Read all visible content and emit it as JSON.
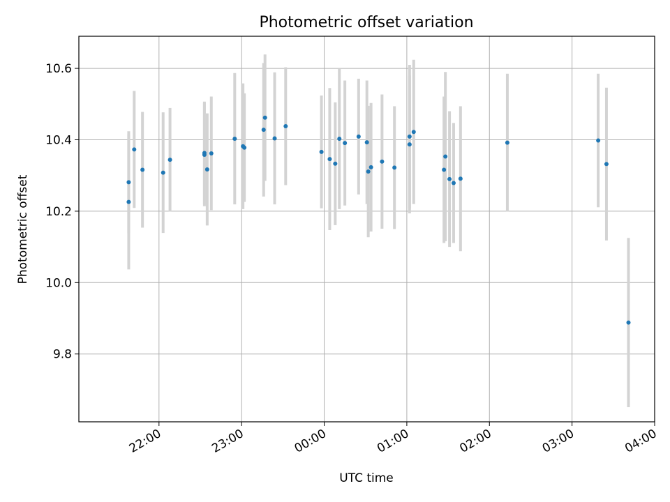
{
  "chart_data": {
    "type": "scatter",
    "title": "Photometric offset variation",
    "xlabel": "UTC time",
    "ylabel": "Photometric offset",
    "x_axis": "time (hours past 00:00 UTC)",
    "xlim": [
      -2.97,
      4.0
    ],
    "ylim": [
      9.61,
      10.69
    ],
    "grid": true,
    "xticks": [
      {
        "value": -2,
        "label": "22:00"
      },
      {
        "value": -1,
        "label": "23:00"
      },
      {
        "value": 0,
        "label": "00:00"
      },
      {
        "value": 1,
        "label": "01:00"
      },
      {
        "value": 2,
        "label": "02:00"
      },
      {
        "value": 3,
        "label": "03:00"
      },
      {
        "value": 4,
        "label": "04:00"
      }
    ],
    "yticks": [
      {
        "value": 9.8,
        "label": "9.8"
      },
      {
        "value": 10.0,
        "label": "10.0"
      },
      {
        "value": 10.2,
        "label": "10.2"
      },
      {
        "value": 10.4,
        "label": "10.4"
      },
      {
        "value": 10.6,
        "label": "10.6"
      }
    ],
    "colors": {
      "point": "#1f77b4",
      "errorbar": "#d3d3d3",
      "grid": "#b0b0b0",
      "axis": "#000000"
    },
    "points": [
      {
        "x": "21:38",
        "y": 10.226,
        "yerr": 0.189
      },
      {
        "x": "21:38",
        "y": 10.281,
        "yerr": 0.143
      },
      {
        "x": "21:42",
        "y": 10.373,
        "yerr": 0.164
      },
      {
        "x": "21:48",
        "y": 10.316,
        "yerr": 0.162
      },
      {
        "x": "22:03",
        "y": 10.308,
        "yerr": 0.169
      },
      {
        "x": "22:08",
        "y": 10.344,
        "yerr": 0.145
      },
      {
        "x": "22:33",
        "y": 10.358,
        "yerr": 0.144
      },
      {
        "x": "22:33",
        "y": 10.363,
        "yerr": 0.144
      },
      {
        "x": "22:35",
        "y": 10.317,
        "yerr": 0.157
      },
      {
        "x": "22:38",
        "y": 10.362,
        "yerr": 0.159
      },
      {
        "x": "22:55",
        "y": 10.403,
        "yerr": 0.184
      },
      {
        "x": "23:01",
        "y": 10.382,
        "yerr": 0.176
      },
      {
        "x": "23:02",
        "y": 10.378,
        "yerr": 0.152
      },
      {
        "x": "23:16",
        "y": 10.428,
        "yerr": 0.187
      },
      {
        "x": "23:17",
        "y": 10.462,
        "yerr": 0.177
      },
      {
        "x": "23:24",
        "y": 10.404,
        "yerr": 0.185
      },
      {
        "x": "23:32",
        "y": 10.438,
        "yerr": 0.165
      },
      {
        "x": "23:58",
        "y": 10.366,
        "yerr": 0.158
      },
      {
        "x": "00:04",
        "y": 10.346,
        "yerr": 0.199
      },
      {
        "x": "00:08",
        "y": 10.333,
        "yerr": 0.172
      },
      {
        "x": "00:11",
        "y": 10.403,
        "yerr": 0.197
      },
      {
        "x": "00:15",
        "y": 10.391,
        "yerr": 0.175
      },
      {
        "x": "00:25",
        "y": 10.409,
        "yerr": 0.162
      },
      {
        "x": "00:31",
        "y": 10.393,
        "yerr": 0.173
      },
      {
        "x": "00:32",
        "y": 10.311,
        "yerr": 0.184
      },
      {
        "x": "00:34",
        "y": 10.323,
        "yerr": 0.18
      },
      {
        "x": "00:42",
        "y": 10.339,
        "yerr": 0.188
      },
      {
        "x": "00:51",
        "y": 10.322,
        "yerr": 0.172
      },
      {
        "x": "01:02",
        "y": 10.409,
        "yerr": 0.201
      },
      {
        "x": "01:02",
        "y": 10.387,
        "yerr": 0.193
      },
      {
        "x": "01:05",
        "y": 10.422,
        "yerr": 0.202
      },
      {
        "x": "01:27",
        "y": 10.316,
        "yerr": 0.205
      },
      {
        "x": "01:28",
        "y": 10.353,
        "yerr": 0.237
      },
      {
        "x": "01:31",
        "y": 10.29,
        "yerr": 0.19
      },
      {
        "x": "01:34",
        "y": 10.279,
        "yerr": 0.168
      },
      {
        "x": "01:39",
        "y": 10.291,
        "yerr": 0.203
      },
      {
        "x": "02:13",
        "y": 10.392,
        "yerr": 0.193
      },
      {
        "x": "03:19",
        "y": 10.398,
        "yerr": 0.187
      },
      {
        "x": "03:25",
        "y": 10.332,
        "yerr": 0.214
      },
      {
        "x": "03:41",
        "y": 9.888,
        "yerr": 0.237
      }
    ]
  }
}
